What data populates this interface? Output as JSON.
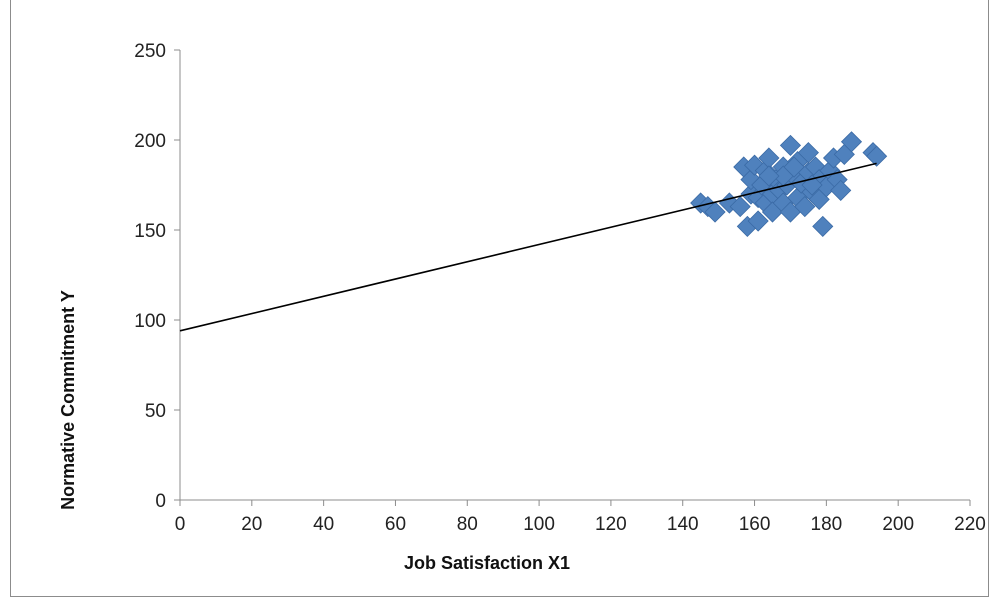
{
  "chart_data": {
    "type": "scatter",
    "title": "",
    "xlabel": "Job Satisfaction  X1",
    "ylabel": "Normative Commitment Y",
    "xlim": [
      0,
      220
    ],
    "ylim": [
      0,
      250
    ],
    "x_ticks": [
      0,
      20,
      40,
      60,
      80,
      100,
      120,
      140,
      160,
      180,
      200,
      220
    ],
    "y_ticks": [
      0,
      50,
      100,
      150,
      200,
      250
    ],
    "grid": false,
    "legend": "none",
    "marker_color": "#4f81bd",
    "marker_shape": "diamond",
    "points": [
      [
        145,
        165
      ],
      [
        147,
        163
      ],
      [
        149,
        160
      ],
      [
        153,
        165
      ],
      [
        156,
        163
      ],
      [
        157,
        185
      ],
      [
        158,
        152
      ],
      [
        159,
        170
      ],
      [
        159,
        178
      ],
      [
        160,
        186
      ],
      [
        161,
        155
      ],
      [
        161,
        168
      ],
      [
        162,
        175
      ],
      [
        163,
        183
      ],
      [
        163,
        165
      ],
      [
        164,
        190
      ],
      [
        165,
        170
      ],
      [
        165,
        160
      ],
      [
        166,
        178
      ],
      [
        167,
        172
      ],
      [
        168,
        165
      ],
      [
        168,
        185
      ],
      [
        169,
        175
      ],
      [
        170,
        160
      ],
      [
        170,
        197
      ],
      [
        171,
        180
      ],
      [
        172,
        168
      ],
      [
        172,
        188
      ],
      [
        173,
        176
      ],
      [
        174,
        163
      ],
      [
        175,
        193
      ],
      [
        175,
        182
      ],
      [
        176,
        171
      ],
      [
        177,
        185
      ],
      [
        178,
        167
      ],
      [
        178,
        178
      ],
      [
        179,
        152
      ],
      [
        180,
        174
      ],
      [
        181,
        183
      ],
      [
        182,
        190
      ],
      [
        183,
        178
      ],
      [
        184,
        172
      ],
      [
        185,
        192
      ],
      [
        187,
        199
      ],
      [
        193,
        193
      ],
      [
        194,
        191
      ],
      [
        168,
        180
      ],
      [
        164,
        180
      ],
      [
        176,
        175
      ],
      [
        171,
        185
      ]
    ],
    "trendline": {
      "x": [
        0,
        194
      ],
      "y": [
        94,
        187
      ]
    }
  }
}
